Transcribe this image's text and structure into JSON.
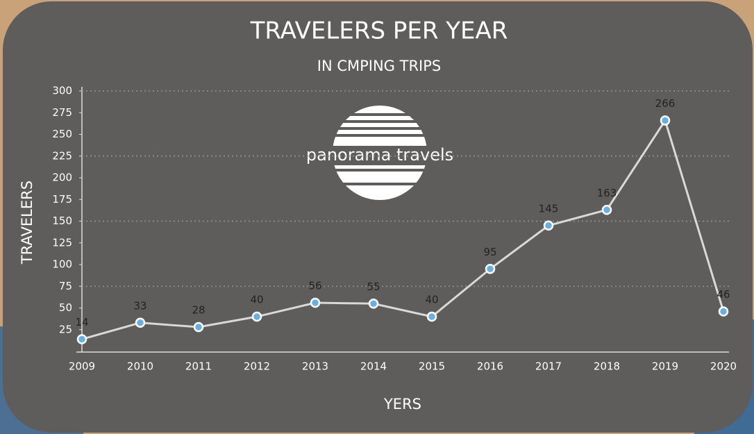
{
  "chart_data": {
    "type": "line",
    "title": "TRAVELERS PER YEAR",
    "subtitle": "IN CMPING TRIPS",
    "x_label": "YERS",
    "y_label": "TRAVELERS",
    "categories": [
      "2009",
      "2010",
      "2011",
      "2012",
      "2013",
      "2014",
      "2015",
      "2016",
      "2017",
      "2018",
      "2019",
      "2020"
    ],
    "series": [
      {
        "name": "Travelers",
        "color": "#d9d9d9",
        "marker_color": "#6ab0de",
        "values": [
          14,
          33,
          28,
          40,
          56,
          55,
          40,
          95,
          145,
          163,
          266,
          46
        ]
      }
    ],
    "ylim": [
      0,
      300
    ],
    "yticks": [
      25,
      50,
      75,
      100,
      125,
      150,
      175,
      200,
      225,
      250,
      275,
      300
    ],
    "gridlines": [
      75,
      150,
      225,
      300
    ],
    "data_labels": true
  },
  "logo": {
    "text": "panorama travels"
  }
}
